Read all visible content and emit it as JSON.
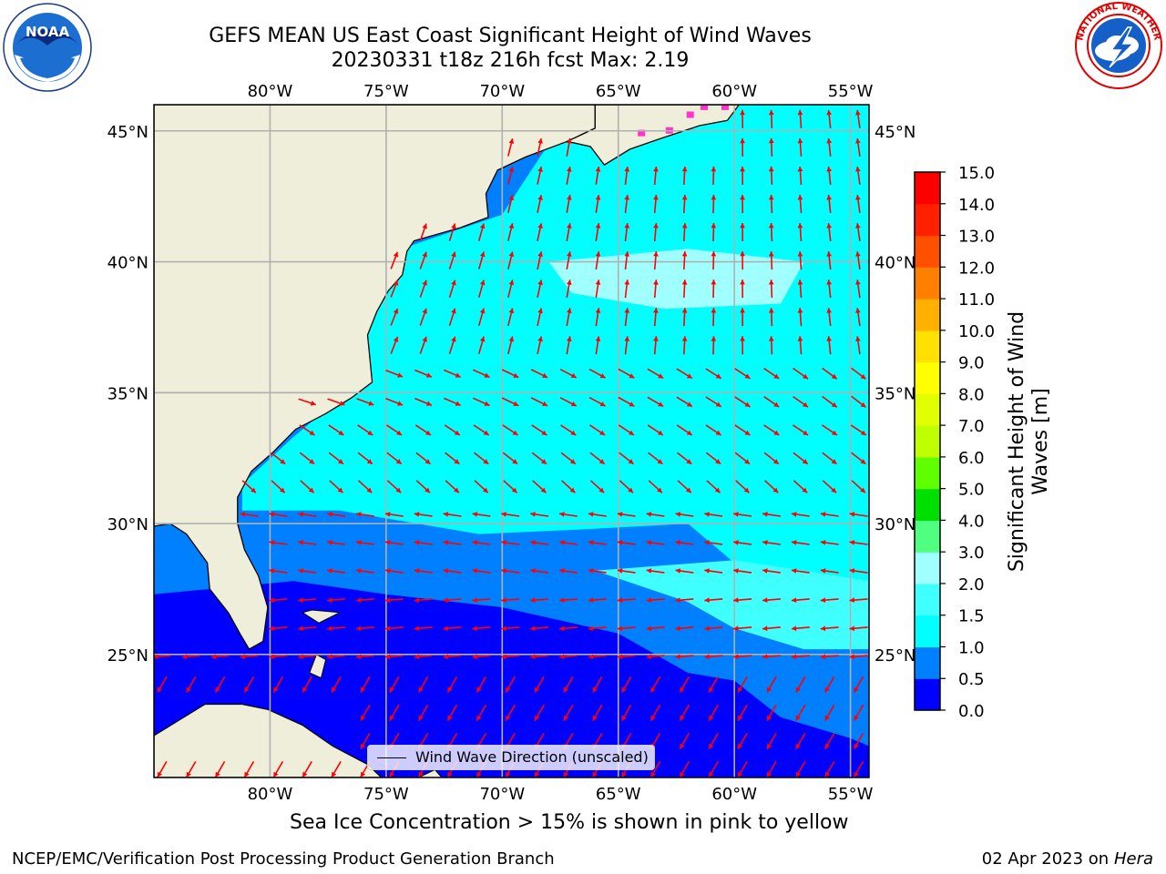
{
  "title": {
    "line1": "GEFS MEAN US East Coast Significant Height of Wind Waves",
    "line2": "20230331 t18z 216h fcst   Max: 2.19"
  },
  "logos": {
    "left": {
      "name": "noaa-logo",
      "text": "NOAA",
      "ring_text": "NATIONAL OCEANIC AND ATMOSPHERIC ADMINISTRATION · U.S. DEPARTMENT OF COMMERCE"
    },
    "right": {
      "name": "nws-logo",
      "ring_text": "NATIONAL WEATHER SERVICE"
    }
  },
  "map": {
    "projection": "lat-lon",
    "lon_range": [
      -85,
      -54.2
    ],
    "lat_range": [
      20.3,
      46
    ],
    "top_lon_ticks": [
      "80°W",
      "75°W",
      "70°W",
      "65°W",
      "60°W",
      "55°W"
    ],
    "bottom_lon_ticks": [
      "80°W",
      "75°W",
      "70°W",
      "65°W",
      "60°W",
      "55°W"
    ],
    "left_lat_ticks": [
      "45°N",
      "40°N",
      "35°N",
      "30°N",
      "25°N"
    ],
    "right_lat_ticks": [
      "45°N",
      "40°N",
      "35°N",
      "30°N",
      "25°N"
    ],
    "gridlines": true,
    "colors": {
      "land": "#efeedb",
      "coast": "#000000",
      "grid": "#b0b0b0",
      "arrows": "#ff0000",
      "sea_ice": "#ff33cc"
    },
    "legend": "Wind Wave Direction (unscaled)",
    "legend_placement": "bottom-center"
  },
  "colorbar": {
    "label": "Significant Height of Wind Waves [m]",
    "label_lines": [
      "Significant Height of Wind",
      "Waves [m]"
    ],
    "ticks": [
      "0.0",
      "0.5",
      "1.0",
      "1.5",
      "2.0",
      "3.0",
      "4.0",
      "5.0",
      "6.0",
      "7.0",
      "8.0",
      "9.0",
      "10.0",
      "11.0",
      "12.0",
      "13.0",
      "14.0",
      "15.0"
    ],
    "colors": [
      "#0000ff",
      "#0080ff",
      "#00ffff",
      "#40ffff",
      "#a0ffff",
      "#50ff80",
      "#00e000",
      "#60ff00",
      "#c0ff00",
      "#e0ff00",
      "#ffff00",
      "#ffe000",
      "#ffb000",
      "#ff8000",
      "#ff5000",
      "#ff2000",
      "#ff0000"
    ]
  },
  "caption": "Sea Ice Concentration > 15% is shown in pink to yellow",
  "footer": {
    "left": "NCEP/EMC/Verification Post Processing Product Generation Branch",
    "right_date": "02 Apr 2023 on ",
    "right_machine": "Hera"
  }
}
